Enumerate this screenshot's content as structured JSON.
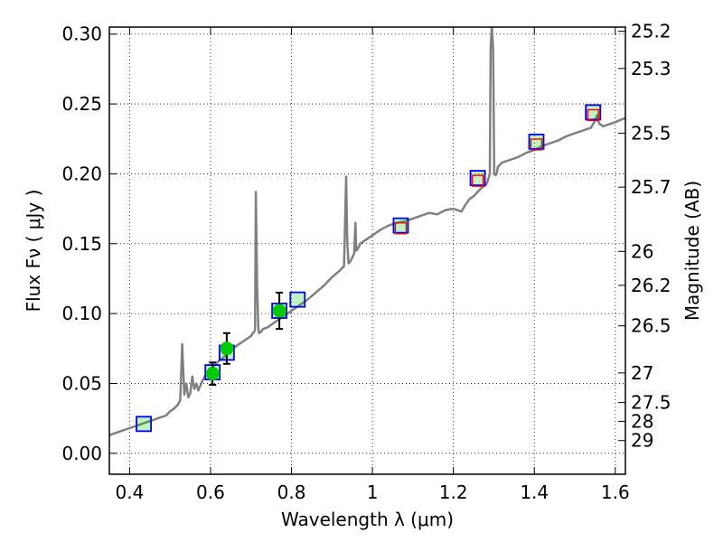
{
  "chart_data": {
    "type": "line",
    "xlabel": "Wavelength  λ (μm)",
    "ylabel": "Flux  Fν  ( μJy )",
    "ylabel_right": "Magnitude (AB)",
    "xlim": [
      0.35,
      1.625
    ],
    "ylim": [
      -0.015,
      0.305
    ],
    "grid": true,
    "colors": {
      "spectrum": "#808080",
      "model_box": "#0000ff",
      "observed_box": "#ff0000",
      "model_fill": "#00cc00",
      "grid": "#000000"
    },
    "x_ticks": [
      {
        "value": 0.4,
        "label": "0.4"
      },
      {
        "value": 0.6,
        "label": "0.6"
      },
      {
        "value": 0.8,
        "label": "0.8"
      },
      {
        "value": 1.0,
        "label": "1"
      },
      {
        "value": 1.2,
        "label": "1.2"
      },
      {
        "value": 1.4,
        "label": "1.4"
      },
      {
        "value": 1.6,
        "label": "1.6"
      }
    ],
    "y_ticks": [
      {
        "value": 0.0,
        "label": "0.00"
      },
      {
        "value": 0.05,
        "label": "0.05"
      },
      {
        "value": 0.1,
        "label": "0.10"
      },
      {
        "value": 0.15,
        "label": "0.15"
      },
      {
        "value": 0.2,
        "label": "0.20"
      },
      {
        "value": 0.25,
        "label": "0.25"
      },
      {
        "value": 0.3,
        "label": "0.30"
      }
    ],
    "right_ticks": [
      {
        "label": "25.2",
        "flux": 0.302
      },
      {
        "label": "25.3",
        "flux": 0.2754
      },
      {
        "label": "25.5",
        "flux": 0.2291
      },
      {
        "label": "25.7",
        "flux": 0.1905
      },
      {
        "label": "26",
        "flux": 0.1445
      },
      {
        "label": "26.2",
        "flux": 0.1202
      },
      {
        "label": "26.5",
        "flux": 0.0912
      },
      {
        "label": "27",
        "flux": 0.0575
      },
      {
        "label": "27.5",
        "flux": 0.0363
      },
      {
        "label": "28",
        "flux": 0.0229
      },
      {
        "label": "29",
        "flux": 0.0091
      }
    ],
    "series": [
      {
        "type": "line",
        "x": [
          0.35,
          0.37,
          0.39,
          0.41,
          0.43,
          0.45,
          0.47,
          0.49,
          0.5,
          0.51,
          0.52,
          0.525,
          0.53,
          0.535,
          0.54,
          0.545,
          0.55,
          0.555,
          0.56,
          0.565,
          0.57,
          0.58,
          0.59,
          0.6,
          0.61,
          0.62,
          0.63,
          0.64,
          0.65,
          0.66,
          0.67,
          0.68,
          0.69,
          0.7,
          0.705,
          0.71,
          0.712,
          0.715,
          0.718,
          0.72,
          0.725,
          0.73,
          0.74,
          0.75,
          0.76,
          0.77,
          0.78,
          0.79,
          0.8,
          0.82,
          0.84,
          0.86,
          0.88,
          0.9,
          0.92,
          0.93,
          0.935,
          0.938,
          0.941,
          0.945,
          0.95,
          0.955,
          0.958,
          0.96,
          0.963,
          0.967,
          0.97,
          0.98,
          1.0,
          1.02,
          1.04,
          1.06,
          1.08,
          1.1,
          1.12,
          1.14,
          1.16,
          1.18,
          1.2,
          1.22,
          1.23,
          1.24,
          1.25,
          1.26,
          1.27,
          1.28,
          1.285,
          1.29,
          1.292,
          1.295,
          1.298,
          1.301,
          1.304,
          1.307,
          1.31,
          1.32,
          1.34,
          1.36,
          1.38,
          1.4,
          1.42,
          1.44,
          1.46,
          1.48,
          1.5,
          1.52,
          1.54,
          1.55,
          1.555,
          1.56,
          1.57,
          1.58,
          1.6,
          1.625
        ],
        "y": [
          0.013,
          0.015,
          0.017,
          0.019,
          0.021,
          0.023,
          0.025,
          0.027,
          0.03,
          0.032,
          0.035,
          0.038,
          0.078,
          0.042,
          0.05,
          0.04,
          0.043,
          0.055,
          0.046,
          0.05,
          0.045,
          0.052,
          0.057,
          0.06,
          0.063,
          0.066,
          0.068,
          0.071,
          0.073,
          0.076,
          0.078,
          0.08,
          0.082,
          0.084,
          0.086,
          0.088,
          0.187,
          0.12,
          0.09,
          0.086,
          0.087,
          0.089,
          0.09,
          0.092,
          0.094,
          0.096,
          0.098,
          0.1,
          0.102,
          0.106,
          0.11,
          0.115,
          0.12,
          0.126,
          0.131,
          0.134,
          0.198,
          0.15,
          0.136,
          0.137,
          0.14,
          0.143,
          0.165,
          0.145,
          0.146,
          0.148,
          0.15,
          0.152,
          0.156,
          0.16,
          0.163,
          0.165,
          0.166,
          0.168,
          0.17,
          0.172,
          0.171,
          0.174,
          0.175,
          0.173,
          0.178,
          0.182,
          0.184,
          0.187,
          0.19,
          0.192,
          0.195,
          0.2,
          0.29,
          0.305,
          0.29,
          0.2,
          0.199,
          0.2,
          0.205,
          0.208,
          0.21,
          0.212,
          0.215,
          0.217,
          0.22,
          0.222,
          0.224,
          0.227,
          0.229,
          0.231,
          0.233,
          0.238,
          0.242,
          0.236,
          0.234,
          0.235,
          0.237,
          0.24
        ]
      },
      {
        "type": "markers",
        "marker": "open-square-blue",
        "x": [
          0.435,
          0.605,
          0.64,
          0.77,
          0.815,
          1.07,
          1.26,
          1.405,
          1.545
        ],
        "y": [
          0.021,
          0.058,
          0.072,
          0.102,
          0.11,
          0.163,
          0.197,
          0.223,
          0.244
        ]
      },
      {
        "type": "markers",
        "marker": "open-square-red",
        "x": [
          1.07,
          1.26,
          1.405,
          1.545
        ],
        "y": [
          0.161,
          0.195,
          0.221,
          0.242
        ]
      },
      {
        "type": "markers",
        "marker": "filled-circle-green",
        "x": [
          0.605,
          0.64,
          0.77
        ],
        "y": [
          0.057,
          0.075,
          0.102
        ],
        "yerr": [
          0.008,
          0.011,
          0.013
        ]
      }
    ]
  }
}
